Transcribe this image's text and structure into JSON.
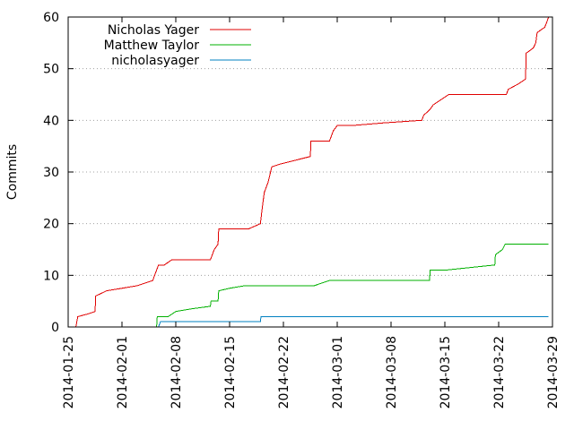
{
  "chart_data": {
    "type": "line",
    "title": "",
    "xlabel": "",
    "ylabel": "Commits",
    "xlim": [
      "2014-01-25",
      "2014-03-29"
    ],
    "ylim": [
      0,
      60
    ],
    "x_ticks": [
      "2014-01-25",
      "2014-02-01",
      "2014-02-08",
      "2014-02-15",
      "2014-02-22",
      "2014-03-01",
      "2014-03-08",
      "2014-03-15",
      "2014-03-22",
      "2014-03-29"
    ],
    "y_ticks": [
      "0",
      "10",
      "20",
      "30",
      "40",
      "50",
      "60"
    ],
    "grid": "horizontal dotted",
    "legend_position": "top-left",
    "series": [
      {
        "name": "Nicholas Yager",
        "color": "#e00000",
        "points": [
          [
            "2014-01-25 12:00",
            0
          ],
          [
            "2014-01-26 00:00",
            0
          ],
          [
            "2014-01-26 06:00",
            2
          ],
          [
            "2014-01-27 12:00",
            2.5
          ],
          [
            "2014-01-28 12:00",
            3
          ],
          [
            "2014-01-28 14:00",
            6
          ],
          [
            "2014-01-30 00:00",
            7
          ],
          [
            "2014-02-01 00:00",
            7.5
          ],
          [
            "2014-02-03 00:00",
            8
          ],
          [
            "2014-02-05 00:00",
            9
          ],
          [
            "2014-02-05 18:00",
            12
          ],
          [
            "2014-02-06 12:00",
            12
          ],
          [
            "2014-02-07 00:00",
            12.5
          ],
          [
            "2014-02-07 12:00",
            13
          ],
          [
            "2014-02-12 12:00",
            13
          ],
          [
            "2014-02-13 00:00",
            15
          ],
          [
            "2014-02-13 12:00",
            16
          ],
          [
            "2014-02-13 14:00",
            19
          ],
          [
            "2014-02-17 12:00",
            19
          ],
          [
            "2014-02-19 00:00",
            20
          ],
          [
            "2014-02-19 06:00",
            23
          ],
          [
            "2014-02-19 12:00",
            26
          ],
          [
            "2014-02-20 00:00",
            28
          ],
          [
            "2014-02-20 12:00",
            31
          ],
          [
            "2014-02-21 12:00",
            31.5
          ],
          [
            "2014-02-25 12:00",
            33
          ],
          [
            "2014-02-25 14:00",
            36
          ],
          [
            "2014-02-28 00:00",
            36
          ],
          [
            "2014-02-28 12:00",
            38
          ],
          [
            "2014-03-01 00:00",
            39
          ],
          [
            "2014-03-03 00:00",
            39
          ],
          [
            "2014-03-07 00:00",
            39.5
          ],
          [
            "2014-03-12 00:00",
            40
          ],
          [
            "2014-03-12 06:00",
            41
          ],
          [
            "2014-03-13 00:00",
            42
          ],
          [
            "2014-03-13 12:00",
            43
          ],
          [
            "2014-03-14 12:00",
            44
          ],
          [
            "2014-03-15 12:00",
            45
          ],
          [
            "2014-03-23 00:00",
            45
          ],
          [
            "2014-03-23 06:00",
            46
          ],
          [
            "2014-03-24 12:00",
            47
          ],
          [
            "2014-03-25 12:00",
            48
          ],
          [
            "2014-03-25 14:00",
            53
          ],
          [
            "2014-03-26 12:00",
            54
          ],
          [
            "2014-03-26 20:00",
            55
          ],
          [
            "2014-03-27 00:00",
            57
          ],
          [
            "2014-03-28 00:00",
            58
          ],
          [
            "2014-03-28 06:00",
            59
          ],
          [
            "2014-03-28 12:00",
            60
          ]
        ]
      },
      {
        "name": "Matthew Taylor",
        "color": "#00b000",
        "points": [
          [
            "2014-02-05 00:00",
            0
          ],
          [
            "2014-02-05 12:00",
            0
          ],
          [
            "2014-02-05 14:00",
            2
          ],
          [
            "2014-02-07 00:00",
            2
          ],
          [
            "2014-02-08 00:00",
            3
          ],
          [
            "2014-02-10 00:00",
            3.5
          ],
          [
            "2014-02-12 12:00",
            4
          ],
          [
            "2014-02-12 14:00",
            5
          ],
          [
            "2014-02-13 12:00",
            5
          ],
          [
            "2014-02-13 14:00",
            7
          ],
          [
            "2014-02-15 00:00",
            7.5
          ],
          [
            "2014-02-17 00:00",
            8
          ],
          [
            "2014-02-26 00:00",
            8
          ],
          [
            "2014-02-28 00:00",
            9
          ],
          [
            "2014-03-13 00:00",
            9
          ],
          [
            "2014-03-13 02:00",
            11
          ],
          [
            "2014-03-15 00:00",
            11
          ],
          [
            "2014-03-21 12:00",
            12
          ],
          [
            "2014-03-21 14:00",
            14
          ],
          [
            "2014-03-22 12:00",
            15
          ],
          [
            "2014-03-22 20:00",
            16
          ],
          [
            "2014-03-28 12:00",
            16
          ]
        ]
      },
      {
        "name": "nicholasyager",
        "color": "#0080c0",
        "points": [
          [
            "2014-02-05 18:00",
            0
          ],
          [
            "2014-02-06 00:00",
            1
          ],
          [
            "2014-02-19 00:00",
            1
          ],
          [
            "2014-02-19 02:00",
            2
          ],
          [
            "2014-03-28 12:00",
            2
          ]
        ]
      }
    ]
  }
}
